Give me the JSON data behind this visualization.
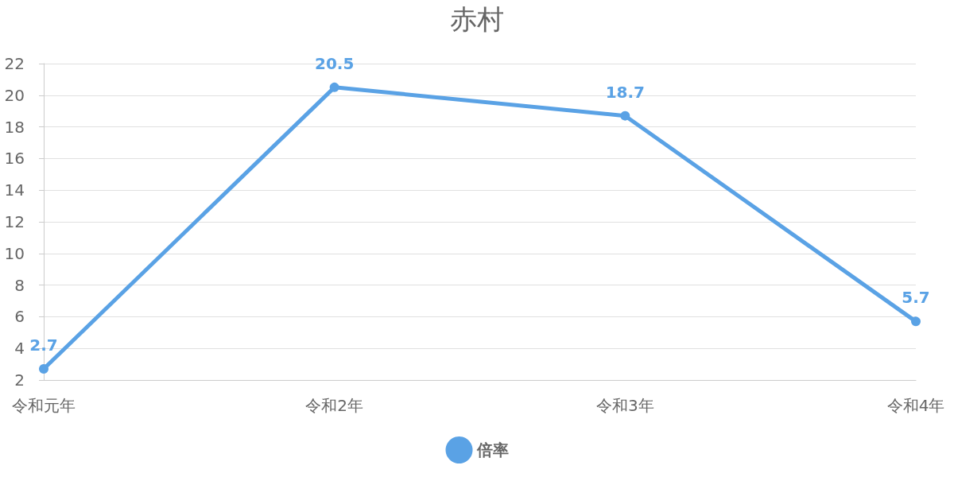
{
  "chart_data": {
    "type": "line",
    "title": "赤村",
    "categories": [
      "令和元年",
      "令和2年",
      "令和3年",
      "令和4年"
    ],
    "series": [
      {
        "name": "倍率",
        "color": "#5aa2e5",
        "values": [
          2.7,
          20.5,
          18.7,
          5.7
        ]
      }
    ],
    "ylim": [
      2,
      22
    ],
    "yticks": [
      2,
      4,
      6,
      8,
      10,
      12,
      14,
      16,
      18,
      20,
      22
    ],
    "grid": "y",
    "legend": "bottom",
    "marker": "circle",
    "data_labels": true
  }
}
